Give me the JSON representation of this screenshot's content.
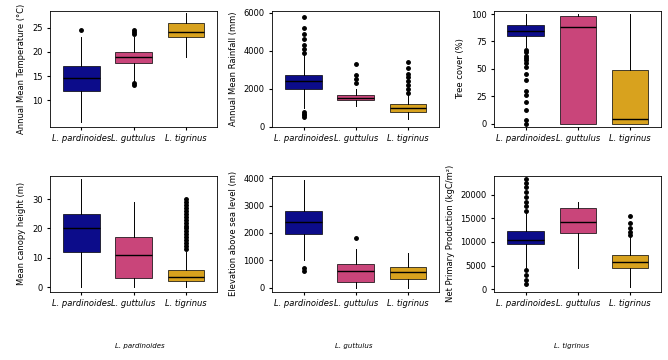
{
  "chart_data": [
    {
      "type": "box",
      "y_label": "Annual Mean Temperature (°C)",
      "categories": [
        "L. pardinoides",
        "L. guttulus",
        "L. tigrinus"
      ],
      "colors": [
        "#0c0c8a",
        "#c9457a",
        "#d8a21e"
      ],
      "boxes": [
        {
          "whislo": 5.5,
          "q1": 12,
          "med": 14.5,
          "q3": 17,
          "whishi": 23,
          "fliers": [
            24.5
          ]
        },
        {
          "whislo": 14,
          "q1": 17.8,
          "med": 19,
          "q3": 20,
          "whishi": 23,
          "fliers": [
            13.2,
            13.5,
            23.8,
            24.2,
            24.5
          ]
        },
        {
          "whislo": 19,
          "q1": 23,
          "med": 24.2,
          "q3": 26,
          "whishi": 28,
          "fliers": []
        }
      ],
      "ylim": [
        4.5,
        28.5
      ],
      "yticks": [
        10,
        15,
        20,
        25
      ]
    },
    {
      "type": "box",
      "y_label": "Annual Mean Rainfall (mm)",
      "categories": [
        "L. pardinoides",
        "L. guttulus",
        "L. tigrinus"
      ],
      "colors": [
        "#0c0c8a",
        "#c9457a",
        "#d8a21e"
      ],
      "boxes": [
        {
          "whislo": 1000,
          "q1": 2000,
          "med": 2400,
          "q3": 2750,
          "whishi": 3800,
          "fliers": [
            500,
            600,
            700,
            800,
            3900,
            4100,
            4300,
            4600,
            4900,
            5200,
            5800
          ]
        },
        {
          "whislo": 1100,
          "q1": 1400,
          "med": 1500,
          "q3": 1650,
          "whishi": 2000,
          "fliers": [
            2300,
            2500,
            2700,
            3300
          ]
        },
        {
          "whislo": 400,
          "q1": 800,
          "med": 1000,
          "q3": 1200,
          "whishi": 1700,
          "fliers": [
            1800,
            2000,
            2200,
            2400,
            2600,
            2800,
            3100,
            3400
          ]
        }
      ],
      "ylim": [
        0,
        6100
      ],
      "yticks": [
        0,
        2000,
        4000,
        6000
      ]
    },
    {
      "type": "box",
      "y_label": "Tree cover (%)",
      "categories": [
        "L. pardinoides",
        "L. guttulus",
        "L. tigrinus"
      ],
      "colors": [
        "#0c0c8a",
        "#c9457a",
        "#d8a21e"
      ],
      "boxes": [
        {
          "whislo": 70,
          "q1": 80,
          "med": 85,
          "q3": 90,
          "whishi": 100,
          "fliers": [
            0,
            3,
            12,
            20,
            26,
            30,
            40,
            45,
            52,
            55,
            58,
            60,
            62,
            65,
            67
          ]
        },
        {
          "whislo": 0,
          "q1": 0,
          "med": 88,
          "q3": 98,
          "whishi": 100,
          "fliers": []
        },
        {
          "whislo": 0,
          "q1": 0,
          "med": 4,
          "q3": 49,
          "whishi": 100,
          "fliers": []
        }
      ],
      "ylim": [
        -3,
        103
      ],
      "yticks": [
        0,
        25,
        50,
        75,
        100
      ]
    },
    {
      "type": "box",
      "y_label": "Mean canopy height (m)",
      "categories": [
        "L. pardinoides",
        "L. guttulus",
        "L. tigrinus"
      ],
      "colors": [
        "#0c0c8a",
        "#c9457a",
        "#d8a21e"
      ],
      "boxes": [
        {
          "whislo": 0,
          "q1": 12,
          "med": 20,
          "q3": 25,
          "whishi": 37,
          "fliers": []
        },
        {
          "whislo": 0,
          "q1": 3,
          "med": 11,
          "q3": 17,
          "whishi": 29,
          "fliers": []
        },
        {
          "whislo": 0,
          "q1": 2,
          "med": 3.5,
          "q3": 6,
          "whishi": 12,
          "fliers": [
            13,
            14,
            15,
            16,
            17,
            18,
            19,
            20,
            21,
            22,
            23,
            24,
            25,
            26,
            27,
            28,
            29,
            30
          ]
        }
      ],
      "ylim": [
        -1.5,
        38
      ],
      "yticks": [
        0,
        10,
        20,
        30
      ]
    },
    {
      "type": "box",
      "y_label": "Elevation above sea level (m)",
      "categories": [
        "L. pardinoides",
        "L. guttulus",
        "L. tigrinus"
      ],
      "colors": [
        "#0c0c8a",
        "#c9457a",
        "#d8a21e"
      ],
      "boxes": [
        {
          "whislo": 1000,
          "q1": 1950,
          "med": 2400,
          "q3": 2800,
          "whishi": 3950,
          "fliers": [
            600,
            700
          ]
        },
        {
          "whislo": 0,
          "q1": 200,
          "med": 600,
          "q3": 850,
          "whishi": 1400,
          "fliers": [
            1800
          ]
        },
        {
          "whislo": 0,
          "q1": 300,
          "med": 550,
          "q3": 750,
          "whishi": 1250,
          "fliers": []
        }
      ],
      "ylim": [
        -150,
        4100
      ],
      "yticks": [
        0,
        1000,
        2000,
        3000,
        4000
      ]
    },
    {
      "type": "box",
      "y_label": "Net Primary Production (kgC/m²)",
      "categories": [
        "L. pardinoides",
        "L. guttulus",
        "L. tigrinus"
      ],
      "colors": [
        "#0c0c8a",
        "#c9457a",
        "#d8a21e"
      ],
      "boxes": [
        {
          "whislo": 4500,
          "q1": 9500,
          "med": 10500,
          "q3": 12200,
          "whishi": 16000,
          "fliers": [
            1000,
            2000,
            3000,
            4000,
            16500,
            17500,
            18500,
            19500,
            20500,
            21500,
            22500,
            23200
          ]
        },
        {
          "whislo": 4500,
          "q1": 11800,
          "med": 14200,
          "q3": 17200,
          "whishi": 18500,
          "fliers": []
        },
        {
          "whislo": 500,
          "q1": 4500,
          "med": 5700,
          "q3": 7200,
          "whishi": 11000,
          "fliers": [
            11500,
            12000,
            13000,
            14000,
            15500
          ]
        }
      ],
      "ylim": [
        -500,
        24000
      ],
      "yticks": [
        0,
        5000,
        10000,
        15000,
        20000
      ]
    }
  ],
  "image_captions": [
    "L. pardinoides",
    "L. guttulus",
    "L. tigrinus"
  ]
}
